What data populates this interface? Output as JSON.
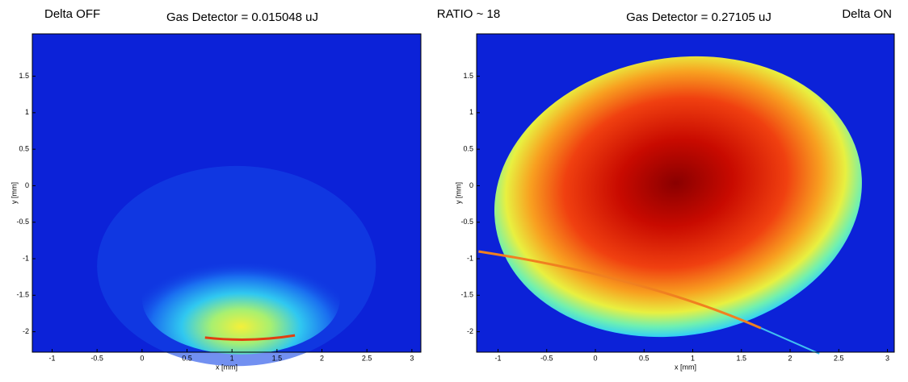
{
  "header": {
    "ratio": "RATIO ~ 18"
  },
  "chart_data": [
    {
      "type": "image",
      "annotation": "Delta OFF",
      "title": "Gas Detector = 0.015048 uJ",
      "x_label": "x [mm]",
      "y_label": "y [mm]",
      "xlim": [
        -1.22,
        3.1
      ],
      "ylim": [
        -2.28,
        2.08
      ],
      "xticks": [
        -1,
        -0.5,
        0,
        0.5,
        1,
        1.5,
        2,
        2.5,
        3
      ],
      "yticks": [
        1.5,
        1,
        0.5,
        0,
        -0.5,
        -1,
        -1.5,
        -2
      ]
    },
    {
      "type": "image",
      "annotation": "Delta ON",
      "title": "Gas Detector = 0.27105 uJ",
      "x_label": "x [mm]",
      "y_label": "y [mm]",
      "xlim": [
        -1.22,
        3.07
      ],
      "ylim": [
        -2.28,
        2.08
      ],
      "xticks": [
        -1,
        -0.5,
        0,
        0.5,
        1,
        1.5,
        2,
        2.5,
        3
      ],
      "yticks": [
        1.5,
        1,
        0.5,
        0,
        -0.5,
        -1,
        -1.5,
        -2
      ]
    }
  ]
}
